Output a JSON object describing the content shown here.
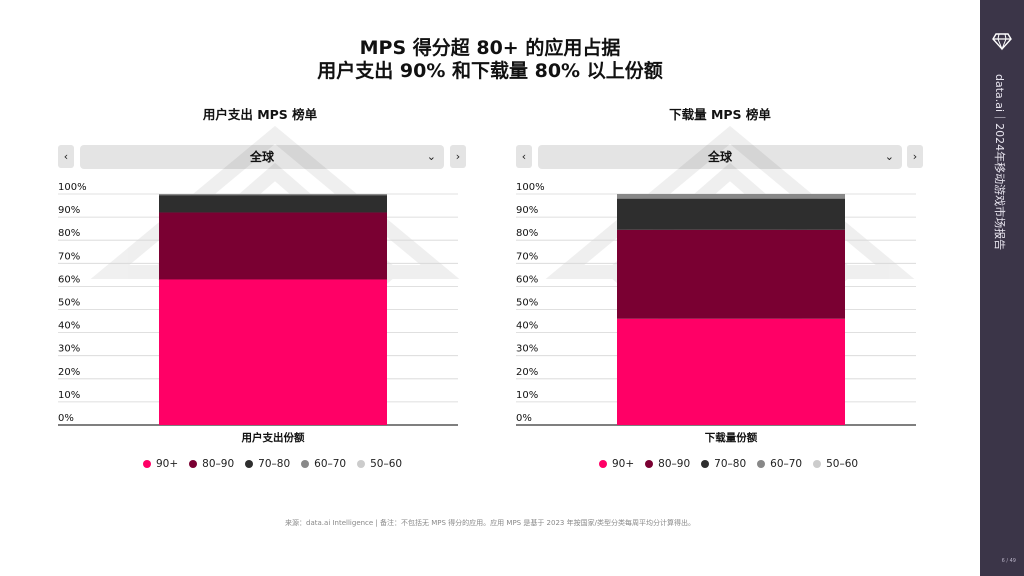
{
  "header": {
    "title_line1": "MPS 得分超 80+ 的应用占据",
    "title_line2": "用户支出 90% 和下载量 80% 以上份额"
  },
  "left": {
    "chart_title": "用户支出 MPS 榜单",
    "prev_label": "‹",
    "next_label": "›",
    "dropdown_value": "全球",
    "chevron": "⌄"
  },
  "right": {
    "chart_title": "下载量 MPS 榜单",
    "prev_label": "‹",
    "next_label": "›",
    "dropdown_value": "全球",
    "chevron": "⌄"
  },
  "legend": [
    {
      "label": "90+",
      "color": "#ff0066"
    },
    {
      "label": "80–90",
      "color": "#7a0032"
    },
    {
      "label": "70–80",
      "color": "#2e2e2e"
    },
    {
      "label": "60–70",
      "color": "#888888"
    },
    {
      "label": "50–60",
      "color": "#cccccc"
    }
  ],
  "chart_data": [
    {
      "type": "bar",
      "stacked": true,
      "title": "用户支出 MPS 榜单",
      "categories": [
        "用户支出份额"
      ],
      "yticks": [
        "0%",
        "10%",
        "20%",
        "30%",
        "40%",
        "50%",
        "60%",
        "70%",
        "80%",
        "90%",
        "100%"
      ],
      "ylim": [
        0,
        100
      ],
      "series": [
        {
          "name": "90+",
          "color": "#ff0066",
          "values": [
            63
          ]
        },
        {
          "name": "80–90",
          "color": "#7a0032",
          "values": [
            29
          ]
        },
        {
          "name": "70–80",
          "color": "#2e2e2e",
          "values": [
            7.5
          ]
        },
        {
          "name": "60–70",
          "color": "#888888",
          "values": [
            0.5
          ]
        },
        {
          "name": "50–60",
          "color": "#cccccc",
          "values": [
            0
          ]
        }
      ],
      "grid": true
    },
    {
      "type": "bar",
      "stacked": true,
      "title": "下载量 MPS 榜单",
      "categories": [
        "下载量份额"
      ],
      "yticks": [
        "0%",
        "10%",
        "20%",
        "30%",
        "40%",
        "50%",
        "60%",
        "70%",
        "80%",
        "90%",
        "100%"
      ],
      "ylim": [
        0,
        100
      ],
      "series": [
        {
          "name": "90+",
          "color": "#ff0066",
          "values": [
            46
          ]
        },
        {
          "name": "80–90",
          "color": "#7a0032",
          "values": [
            38.5
          ]
        },
        {
          "name": "70–80",
          "color": "#2e2e2e",
          "values": [
            13.5
          ]
        },
        {
          "name": "60–70",
          "color": "#888888",
          "values": [
            2
          ]
        },
        {
          "name": "50–60",
          "color": "#cccccc",
          "values": [
            0
          ]
        }
      ],
      "grid": true
    }
  ],
  "footnote": "来源：data.ai Intelligence | 备注：不包括无 MPS 得分的应用。应用 MPS 是基于 2023 年按国家/类型分类每周平均分计算得出。",
  "sidebar": {
    "brand_text": "data.ai｜2024年移动游戏市场报告",
    "page": "6 / 49"
  }
}
